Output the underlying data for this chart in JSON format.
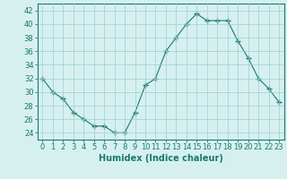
{
  "x": [
    0,
    1,
    2,
    3,
    4,
    5,
    6,
    7,
    8,
    9,
    10,
    11,
    12,
    13,
    14,
    15,
    16,
    17,
    18,
    19,
    20,
    21,
    22,
    23
  ],
  "y": [
    32,
    30,
    29,
    27,
    26,
    25,
    25,
    24,
    24,
    27,
    31,
    32,
    36,
    38,
    40,
    41.5,
    40.5,
    40.5,
    40.5,
    37.5,
    35,
    32,
    30.5,
    28.5
  ],
  "line_color": "#1a7a6a",
  "marker": "+",
  "marker_size": 4,
  "bg_color": "#d6f0f0",
  "grid_color": "#9ecece",
  "xlabel": "Humidex (Indice chaleur)",
  "ylabel": "",
  "xlim": [
    -0.5,
    23.5
  ],
  "ylim": [
    23,
    43
  ],
  "yticks": [
    24,
    26,
    28,
    30,
    32,
    34,
    36,
    38,
    40,
    42
  ],
  "xticks": [
    0,
    1,
    2,
    3,
    4,
    5,
    6,
    7,
    8,
    9,
    10,
    11,
    12,
    13,
    14,
    15,
    16,
    17,
    18,
    19,
    20,
    21,
    22,
    23
  ],
  "label_fontsize": 7,
  "tick_fontsize": 6
}
